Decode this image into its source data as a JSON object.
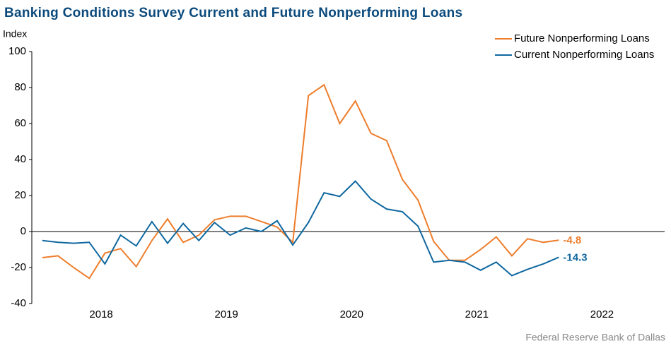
{
  "chart_data": {
    "type": "line",
    "title": "Banking Conditions Survey Current and Future Nonperforming Loans",
    "ylabel": "Index",
    "source": "Federal Reserve Bank of Dallas",
    "x": [
      2018.03,
      2018.155,
      2018.28,
      2018.405,
      2018.53,
      2018.655,
      2018.78,
      2018.905,
      2019.03,
      2019.155,
      2019.28,
      2019.405,
      2019.53,
      2019.655,
      2019.78,
      2019.905,
      2020.03,
      2020.155,
      2020.28,
      2020.405,
      2020.53,
      2020.655,
      2020.78,
      2020.905,
      2021.03,
      2021.155,
      2021.28,
      2021.405,
      2021.53,
      2021.655,
      2021.78,
      2021.905,
      2022.03,
      2022.155
    ],
    "series": [
      {
        "name": "Future Nonperforming Loans",
        "color": "#ee7d2b",
        "values": [
          -14.5,
          -13.5,
          -20,
          -26,
          -12,
          -9.5,
          -19.5,
          -5,
          7,
          -6,
          -2,
          6.5,
          8.5,
          8.5,
          5.5,
          2.5,
          -6,
          75.5,
          81.5,
          60,
          72.5,
          54.5,
          50.5,
          29,
          17.5,
          -5.5,
          -16,
          -16,
          -10,
          -3,
          -13.5,
          -4,
          -6,
          -4.8
        ]
      },
      {
        "name": "Current Nonperforming Loans",
        "color": "#0f68a0",
        "values": [
          -5,
          -6,
          -6.5,
          -6,
          -18,
          -2,
          -8,
          5.5,
          -6.5,
          4.5,
          -5,
          5,
          -2,
          2,
          0,
          6,
          -7.5,
          5,
          21.5,
          19.5,
          28,
          18,
          12.5,
          11,
          3,
          -17,
          -16,
          -17,
          -21.5,
          -17,
          -24.5,
          -21,
          -18,
          -14.3
        ]
      }
    ],
    "xlim": [
      2017.946,
      2023.0
    ],
    "xticks": [
      {
        "value": 2018.5,
        "label": "2018"
      },
      {
        "value": 2019.5,
        "label": "2019"
      },
      {
        "value": 2020.5,
        "label": "2020"
      },
      {
        "value": 2021.5,
        "label": "2021"
      },
      {
        "value": 2022.5,
        "label": "2022"
      }
    ],
    "ylim": [
      -40,
      100
    ],
    "yticks": [
      -40,
      -20,
      0,
      20,
      40,
      60,
      80,
      100
    ],
    "legend": "upper right"
  }
}
